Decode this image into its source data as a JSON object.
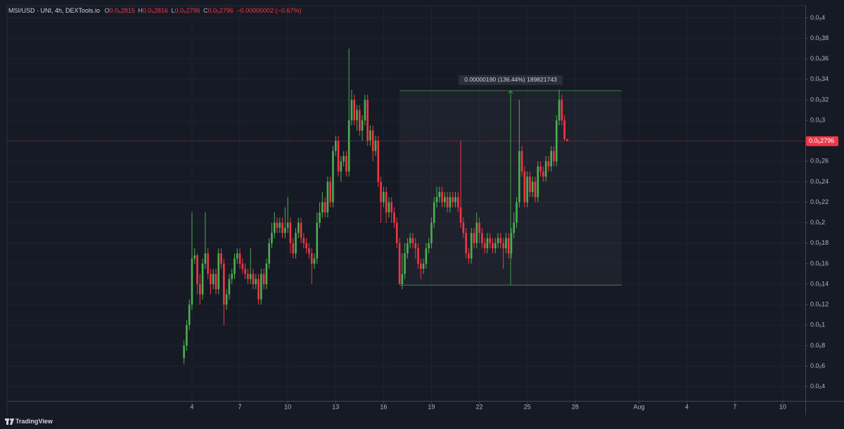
{
  "header": {
    "symbol": "MSI/USD · UNI, 4h, DEXTools.io",
    "ohlc": [
      {
        "key": "O",
        "value": "0.0₅2815"
      },
      {
        "key": "H",
        "value": "0.0₅2816"
      },
      {
        "key": "L",
        "value": "0.0₅2796"
      },
      {
        "key": "C",
        "value": "0.0₅2796"
      }
    ],
    "change": "−0.00000002 (−0.67%)"
  },
  "footer": {
    "brand": "TradingView"
  },
  "chart_data": {
    "type": "candlestick",
    "up_color": "#4caf50",
    "down_color": "#f23645",
    "grid": true,
    "xlim": [
      -206,
      994
    ],
    "xticks": [
      {
        "value": 72,
        "label": "4"
      },
      {
        "value": 144,
        "label": "7"
      },
      {
        "value": 216,
        "label": "10"
      },
      {
        "value": 288,
        "label": "13"
      },
      {
        "value": 360,
        "label": "16"
      },
      {
        "value": 432,
        "label": "19"
      },
      {
        "value": 504,
        "label": "22"
      },
      {
        "value": 576,
        "label": "25"
      },
      {
        "value": 648,
        "label": "28"
      },
      {
        "value": 744,
        "label": "Aug"
      },
      {
        "value": 816,
        "label": "4"
      },
      {
        "value": 888,
        "label": "7"
      },
      {
        "value": 960,
        "label": "10"
      }
    ],
    "ylim": [
      2.6e-07,
      4.12e-06
    ],
    "yticks": [
      {
        "value": 4e-06,
        "label": "0.0₅4"
      },
      {
        "value": 3.8e-06,
        "label": "0.0₅38"
      },
      {
        "value": 3.6e-06,
        "label": "0.0₅36"
      },
      {
        "value": 3.4e-06,
        "label": "0.0₅34"
      },
      {
        "value": 3.2e-06,
        "label": "0.0₅32"
      },
      {
        "value": 3e-06,
        "label": "0.0₅3"
      },
      {
        "value": 2.8e-06,
        "label": "0.0₅28"
      },
      {
        "value": 2.6e-06,
        "label": "0.0₅26"
      },
      {
        "value": 2.4e-06,
        "label": "0.0₅24"
      },
      {
        "value": 2.2e-06,
        "label": "0.0₅22"
      },
      {
        "value": 2e-06,
        "label": "0.0₅2"
      },
      {
        "value": 1.8e-06,
        "label": "0.0₅18"
      },
      {
        "value": 1.6e-06,
        "label": "0.0₅16"
      },
      {
        "value": 1.4e-06,
        "label": "0.0₅14"
      },
      {
        "value": 1.2e-06,
        "label": "0.0₅12"
      },
      {
        "value": 1e-06,
        "label": "0.0₅1"
      },
      {
        "value": 8e-07,
        "label": "0.0₆8"
      },
      {
        "value": 6e-07,
        "label": "0.0₆6"
      },
      {
        "value": 4e-07,
        "label": "0.0₆4"
      }
    ],
    "last_label": "0.0₅2796",
    "measure": {
      "text": "0.00000190 (136.44%) 189821743",
      "low": 1.39e-06,
      "high": 3.29e-06,
      "start": 384,
      "end": 718,
      "arrow_x": 551
    },
    "x": [
      60,
      64,
      68,
      72,
      76,
      80,
      84,
      88,
      92,
      96,
      100,
      104,
      108,
      112,
      116,
      120,
      124,
      128,
      132,
      136,
      140,
      144,
      148,
      152,
      156,
      160,
      164,
      168,
      172,
      176,
      180,
      184,
      188,
      192,
      196,
      200,
      204,
      208,
      212,
      216,
      220,
      224,
      228,
      232,
      236,
      240,
      244,
      248,
      252,
      256,
      260,
      264,
      268,
      272,
      276,
      280,
      284,
      288,
      292,
      296,
      300,
      304,
      308,
      312,
      316,
      320,
      324,
      328,
      332,
      336,
      340,
      344,
      348,
      352,
      356,
      360,
      364,
      368,
      372,
      376,
      380,
      384,
      388,
      392,
      396,
      400,
      404,
      408,
      412,
      416,
      420,
      424,
      428,
      432,
      436,
      440,
      444,
      448,
      452,
      456,
      460,
      464,
      468,
      472,
      476,
      480,
      484,
      488,
      492,
      496,
      500,
      504,
      508,
      512,
      516,
      520,
      524,
      528,
      532,
      536,
      540,
      544,
      548,
      552,
      556,
      560,
      564,
      568,
      572,
      576,
      580,
      584,
      588,
      592,
      596,
      600,
      604,
      608,
      612,
      616,
      620,
      624,
      628,
      632,
      636
    ],
    "open": [
      6.8e-07,
      8e-07,
      1e-06,
      1.2e-06,
      1.65e-06,
      1.68e-06,
      1.4e-06,
      1.3e-06,
      1.6e-06,
      1.7e-06,
      1.5e-06,
      1.4e-06,
      1.5e-06,
      1.35e-06,
      1.7e-06,
      1.6e-06,
      1.2e-06,
      1.3e-06,
      1.45e-06,
      1.5e-06,
      1.65e-06,
      1.7e-06,
      1.6e-06,
      1.55e-06,
      1.5e-06,
      1.45e-06,
      1.5e-06,
      1.4e-06,
      1.45e-06,
      1.25e-06,
      1.5e-06,
      1.4e-06,
      1.6e-06,
      1.8e-06,
      1.9e-06,
      2e-06,
      1.95e-06,
      2e-06,
      1.9e-06,
      1.95e-06,
      2e-06,
      1.8e-06,
      1.7e-06,
      1.9e-06,
      2e-06,
      1.85e-06,
      1.8e-06,
      1.75e-06,
      1.7e-06,
      1.6e-06,
      1.65e-06,
      2e-06,
      2.1e-06,
      2.2e-06,
      2.1e-06,
      2.4e-06,
      2.2e-06,
      2.7e-06,
      2.8e-06,
      2.5e-06,
      2.6e-06,
      2.65e-06,
      2.5e-06,
      3e-06,
      3.2e-06,
      3e-06,
      3.1e-06,
      2.9e-06,
      3e-06,
      3.2e-06,
      2.8e-06,
      2.9e-06,
      2.7e-06,
      2.8e-06,
      2.4e-06,
      2.2e-06,
      2.3e-06,
      2.1e-06,
      2.2e-06,
      2.1e-06,
      2e-06,
      1.8e-06,
      1.4e-06,
      1.5e-06,
      1.7e-06,
      1.8e-06,
      1.85e-06,
      1.8e-06,
      1.75e-06,
      1.6e-06,
      1.55e-06,
      1.6e-06,
      1.75e-06,
      1.8e-06,
      2e-06,
      2.2e-06,
      2.25e-06,
      2.3e-06,
      2.2e-06,
      2.25e-06,
      2.15e-06,
      2.25e-06,
      2.2e-06,
      2.25e-06,
      2.15e-06,
      2e-06,
      1.9e-06,
      1.7e-06,
      1.65e-06,
      1.9e-06,
      1.8e-06,
      2e-06,
      1.9e-06,
      1.8e-06,
      1.75e-06,
      1.85e-06,
      1.8e-06,
      1.75e-06,
      1.8e-06,
      1.85e-06,
      1.8e-06,
      1.75e-06,
      1.85e-06,
      1.7e-06,
      1.9e-06,
      2e-06,
      2.2e-06,
      2.7e-06,
      2.5e-06,
      2.2e-06,
      2.45e-06,
      2.3e-06,
      2.4e-06,
      2.25e-06,
      2.55e-06,
      2.5e-06,
      2.45e-06,
      2.6e-06,
      2.55e-06,
      2.7e-06,
      2.6e-06,
      3e-06,
      3.2e-06,
      3e-06,
      2.815e-06
    ],
    "high": [
      8.5e-07,
      1.05e-06,
      1.25e-06,
      2.1e-06,
      1.75e-06,
      1.7e-06,
      1.5e-06,
      1.65e-06,
      2.1e-06,
      1.75e-06,
      1.55e-06,
      1.55e-06,
      1.55e-06,
      1.75e-06,
      1.75e-06,
      1.65e-06,
      1.35e-06,
      1.5e-06,
      1.55e-06,
      1.7e-06,
      1.75e-06,
      1.75e-06,
      1.65e-06,
      1.6e-06,
      1.55e-06,
      1.75e-06,
      1.55e-06,
      1.5e-06,
      1.5e-06,
      1.55e-06,
      1.55e-06,
      1.65e-06,
      1.85e-06,
      2e-06,
      2.1e-06,
      2.05e-06,
      2.05e-06,
      2.05e-06,
      2.15e-06,
      2.25e-06,
      2.05e-06,
      1.85e-06,
      1.95e-06,
      2.05e-06,
      2.05e-06,
      1.9e-06,
      1.85e-06,
      1.8e-06,
      1.75e-06,
      1.7e-06,
      2.1e-06,
      2.2e-06,
      2.3e-06,
      2.25e-06,
      2.45e-06,
      2.45e-06,
      2.75e-06,
      2.85e-06,
      2.85e-06,
      2.65e-06,
      2.7e-06,
      2.7e-06,
      3.7e-06,
      3.3e-06,
      3.25e-06,
      3.15e-06,
      3.15e-06,
      3.05e-06,
      3.25e-06,
      3.25e-06,
      2.95e-06,
      2.95e-06,
      2.85e-06,
      2.85e-06,
      2.45e-06,
      2.35e-06,
      2.35e-06,
      2.25e-06,
      2.25e-06,
      2.15e-06,
      2.05e-06,
      1.85e-06,
      1.7e-06,
      1.8e-06,
      1.85e-06,
      1.9e-06,
      1.9e-06,
      1.85e-06,
      1.8e-06,
      1.65e-06,
      1.65e-06,
      1.8e-06,
      1.85e-06,
      2.05e-06,
      2.25e-06,
      2.35e-06,
      2.35e-06,
      2.35e-06,
      2.3e-06,
      2.3e-06,
      2.3e-06,
      2.3e-06,
      2.3e-06,
      2.3e-06,
      2.8e-06,
      2.05e-06,
      1.95e-06,
      1.75e-06,
      1.95e-06,
      1.95e-06,
      2.1e-06,
      2.05e-06,
      1.95e-06,
      1.85e-06,
      1.9e-06,
      1.9e-06,
      1.85e-06,
      1.85e-06,
      1.9e-06,
      1.9e-06,
      1.85e-06,
      1.9e-06,
      1.9e-06,
      1.95e-06,
      2.1e-06,
      2.25e-06,
      3.2e-06,
      2.75e-06,
      2.55e-06,
      2.5e-06,
      2.5e-06,
      2.45e-06,
      2.45e-06,
      2.6e-06,
      2.6e-06,
      2.55e-06,
      2.65e-06,
      2.65e-06,
      2.75e-06,
      2.75e-06,
      3.05e-06,
      3.3e-06,
      3.25e-06,
      3.05e-06,
      2.816e-06
    ],
    "low": [
      6.2e-07,
      7.5e-07,
      9.5e-07,
      1.15e-06,
      1.6e-06,
      1.3e-06,
      1.2e-06,
      1.25e-06,
      1.55e-06,
      1.45e-06,
      1.3e-06,
      1.35e-06,
      1.3e-06,
      1.3e-06,
      1.55e-06,
      1e-06,
      1.15e-06,
      1.25e-06,
      1.4e-06,
      1.45e-06,
      1.6e-06,
      1.55e-06,
      1.5e-06,
      1.45e-06,
      1.4e-06,
      1.4e-06,
      1.35e-06,
      1.35e-06,
      1.2e-06,
      1.2e-06,
      1.35e-06,
      1.35e-06,
      1.55e-06,
      1.75e-06,
      1.85e-06,
      1.9e-06,
      1.9e-06,
      1.85e-06,
      1.85e-06,
      1.9e-06,
      1.7e-06,
      1.65e-06,
      1.65e-06,
      1.85e-06,
      1.8e-06,
      1.75e-06,
      1.7e-06,
      1.65e-06,
      1.4e-06,
      1.55e-06,
      1.6e-06,
      1.95e-06,
      2.05e-06,
      2.05e-06,
      2.05e-06,
      2.15e-06,
      2.15e-06,
      2.65e-06,
      2.45e-06,
      2.4e-06,
      2.55e-06,
      2.45e-06,
      2.45e-06,
      2.95e-06,
      2.95e-06,
      2.9e-06,
      2.85e-06,
      2.8e-06,
      2.95e-06,
      2.75e-06,
      2.75e-06,
      2.6e-06,
      2.65e-06,
      2.35e-06,
      2e-06,
      2.15e-06,
      2e-06,
      2.05e-06,
      2e-06,
      1.95e-06,
      1.75e-06,
      1.4e-06,
      1.35e-06,
      1.45e-06,
      1.65e-06,
      1.75e-06,
      1.75e-06,
      1.65e-06,
      1.55e-06,
      1.45e-06,
      1.5e-06,
      1.55e-06,
      1.7e-06,
      1.75e-06,
      1.95e-06,
      2.15e-06,
      2.2e-06,
      2.15e-06,
      2.15e-06,
      2.1e-06,
      2.1e-06,
      2.15e-06,
      2.15e-06,
      2.1e-06,
      1.95e-06,
      1.85e-06,
      1.65e-06,
      1.6e-06,
      1.6e-06,
      1.75e-06,
      1.75e-06,
      1.8e-06,
      1.75e-06,
      1.7e-06,
      1.7e-06,
      1.75e-06,
      1.7e-06,
      1.7e-06,
      1.75e-06,
      1.75e-06,
      1.55e-06,
      1.7e-06,
      1.65e-06,
      1.65e-06,
      1.85e-06,
      1.95e-06,
      2.15e-06,
      2.45e-06,
      2.15e-06,
      2.15e-06,
      2.25e-06,
      2.25e-06,
      2.2e-06,
      2.2e-06,
      2.45e-06,
      2.4e-06,
      2.4e-06,
      2.5e-06,
      2.5e-06,
      2.55e-06,
      2.55e-06,
      2.95e-06,
      2.95e-06,
      2.8e-06,
      2.796e-06
    ],
    "close": [
      8e-07,
      1e-06,
      1.2e-06,
      1.65e-06,
      1.68e-06,
      1.4e-06,
      1.3e-06,
      1.6e-06,
      1.7e-06,
      1.5e-06,
      1.4e-06,
      1.5e-06,
      1.35e-06,
      1.7e-06,
      1.6e-06,
      1.2e-06,
      1.3e-06,
      1.45e-06,
      1.5e-06,
      1.65e-06,
      1.7e-06,
      1.6e-06,
      1.55e-06,
      1.5e-06,
      1.45e-06,
      1.5e-06,
      1.4e-06,
      1.45e-06,
      1.25e-06,
      1.5e-06,
      1.4e-06,
      1.6e-06,
      1.8e-06,
      1.9e-06,
      2e-06,
      1.95e-06,
      2e-06,
      1.9e-06,
      1.95e-06,
      2e-06,
      1.8e-06,
      1.7e-06,
      1.9e-06,
      2e-06,
      1.85e-06,
      1.8e-06,
      1.75e-06,
      1.7e-06,
      1.6e-06,
      1.65e-06,
      2e-06,
      2.1e-06,
      2.2e-06,
      2.1e-06,
      2.4e-06,
      2.2e-06,
      2.7e-06,
      2.8e-06,
      2.5e-06,
      2.6e-06,
      2.65e-06,
      2.5e-06,
      3e-06,
      3.2e-06,
      3e-06,
      3.1e-06,
      2.9e-06,
      3e-06,
      3.2e-06,
      2.8e-06,
      2.9e-06,
      2.7e-06,
      2.8e-06,
      2.4e-06,
      2.2e-06,
      2.3e-06,
      2.1e-06,
      2.2e-06,
      2.1e-06,
      2e-06,
      1.8e-06,
      1.4e-06,
      1.5e-06,
      1.7e-06,
      1.8e-06,
      1.85e-06,
      1.8e-06,
      1.75e-06,
      1.6e-06,
      1.55e-06,
      1.6e-06,
      1.75e-06,
      1.8e-06,
      2e-06,
      2.2e-06,
      2.25e-06,
      2.3e-06,
      2.2e-06,
      2.25e-06,
      2.15e-06,
      2.25e-06,
      2.2e-06,
      2.25e-06,
      2.15e-06,
      2e-06,
      1.9e-06,
      1.7e-06,
      1.65e-06,
      1.9e-06,
      1.8e-06,
      2e-06,
      1.9e-06,
      1.8e-06,
      1.75e-06,
      1.85e-06,
      1.8e-06,
      1.75e-06,
      1.8e-06,
      1.85e-06,
      1.8e-06,
      1.75e-06,
      1.85e-06,
      1.7e-06,
      1.9e-06,
      2e-06,
      2.2e-06,
      2.7e-06,
      2.5e-06,
      2.2e-06,
      2.45e-06,
      2.3e-06,
      2.4e-06,
      2.25e-06,
      2.55e-06,
      2.5e-06,
      2.45e-06,
      2.6e-06,
      2.55e-06,
      2.7e-06,
      2.6e-06,
      3e-06,
      3.2e-06,
      3e-06,
      2.815e-06,
      2.796e-06
    ]
  }
}
